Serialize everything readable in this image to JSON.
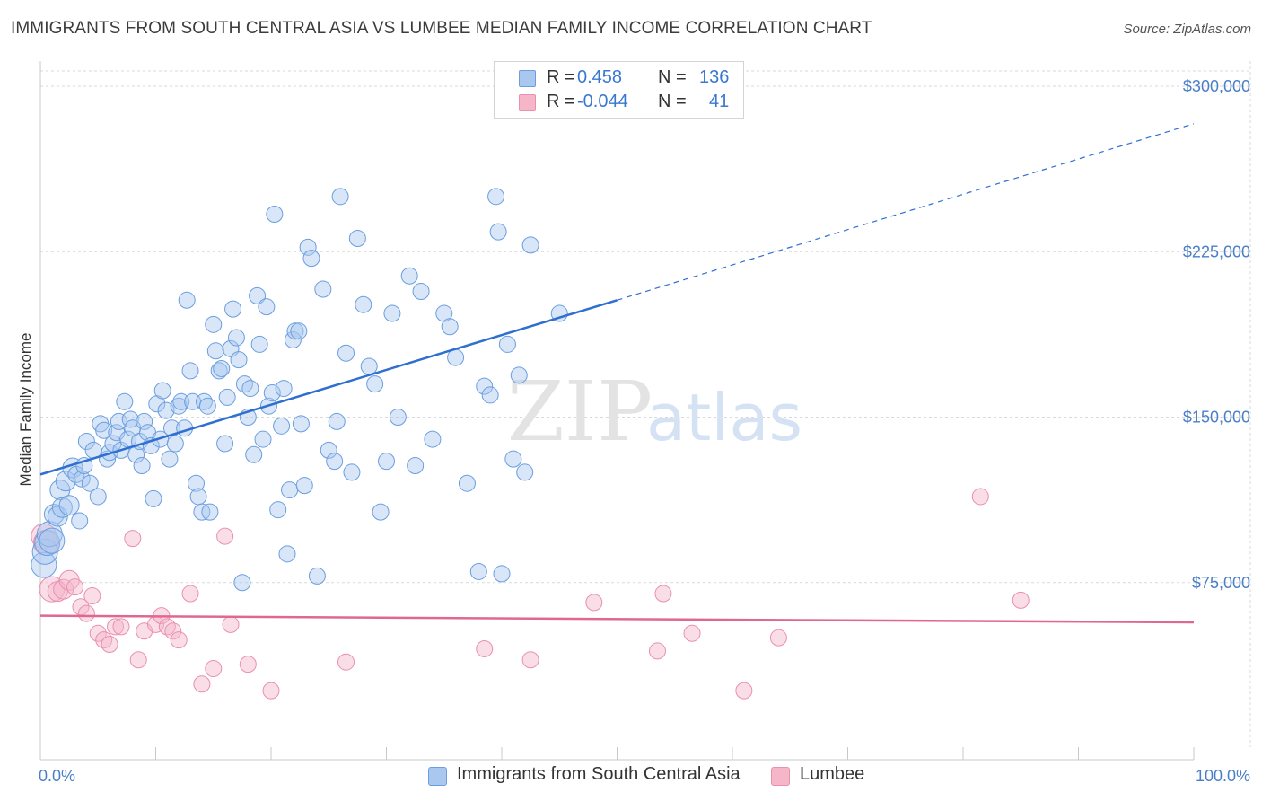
{
  "title": "IMMIGRANTS FROM SOUTH CENTRAL ASIA VS LUMBEE MEDIAN FAMILY INCOME CORRELATION CHART",
  "source": "Source: ZipAtlas.com",
  "watermark": {
    "zip": "ZIP",
    "atlas": "atlas"
  },
  "legend": {
    "rows": [
      {
        "r_label": "R =",
        "r_value": "0.458",
        "n_label": "N =",
        "n_value": "136",
        "color": "#a9c7ef"
      },
      {
        "r_label": "R =",
        "r_value": "-0.044",
        "n_label": "N =",
        "n_value": "41",
        "color": "#f5b6c9"
      }
    ]
  },
  "bottom_legend": {
    "series1": "Immigrants from South Central Asia",
    "series2": "Lumbee"
  },
  "colors": {
    "blue_fill": "#a9c7ef",
    "blue_stroke": "#6a9ee0",
    "blue_line": "#2f6fcf",
    "pink_fill": "#f5b6c9",
    "pink_stroke": "#ea8fae",
    "pink_line": "#e0688f",
    "tick_text": "#4a7fc8",
    "grid": "#d9d9d9"
  },
  "chart_data": {
    "type": "scatter",
    "title": "IMMIGRANTS FROM SOUTH CENTRAL ASIA VS LUMBEE MEDIAN FAMILY INCOME CORRELATION CHART",
    "xlabel": "",
    "ylabel": "Median Family Income",
    "xlim": [
      0,
      100
    ],
    "ylim": [
      0,
      310000
    ],
    "x_tick_labels": [
      "0.0%",
      "100.0%"
    ],
    "y_ticks": [
      75000,
      150000,
      225000,
      300000
    ],
    "y_tick_labels": [
      "$75,000",
      "$150,000",
      "$225,000",
      "$300,000"
    ],
    "grid": true,
    "legend_placement": "top-center",
    "series": [
      {
        "name": "Immigrants from South Central Asia",
        "r": 0.458,
        "n": 136,
        "trend": {
          "x0": 0,
          "y0": 124000,
          "x1": 50,
          "y1": 203000,
          "dashed_to_x": 100,
          "dashed_to_y": 283000
        },
        "points": [
          [
            0.3,
            83000
          ],
          [
            0.4,
            89000
          ],
          [
            0.6,
            93000
          ],
          [
            0.8,
            97000
          ],
          [
            1.0,
            94000
          ],
          [
            1.2,
            106000
          ],
          [
            1.5,
            105000
          ],
          [
            1.7,
            117000
          ],
          [
            1.9,
            109000
          ],
          [
            2.2,
            121000
          ],
          [
            2.5,
            110000
          ],
          [
            2.8,
            127000
          ],
          [
            3.1,
            124000
          ],
          [
            3.4,
            103000
          ],
          [
            3.6,
            122000
          ],
          [
            3.8,
            128000
          ],
          [
            4.0,
            139000
          ],
          [
            4.3,
            120000
          ],
          [
            4.6,
            135000
          ],
          [
            5.0,
            114000
          ],
          [
            5.2,
            147000
          ],
          [
            5.5,
            144000
          ],
          [
            5.8,
            131000
          ],
          [
            6.0,
            134000
          ],
          [
            6.3,
            138000
          ],
          [
            6.6,
            143000
          ],
          [
            6.8,
            148000
          ],
          [
            7.0,
            135000
          ],
          [
            7.3,
            157000
          ],
          [
            7.6,
            140000
          ],
          [
            7.8,
            149000
          ],
          [
            8.0,
            145000
          ],
          [
            8.3,
            133000
          ],
          [
            8.6,
            139000
          ],
          [
            8.8,
            128000
          ],
          [
            9.0,
            148000
          ],
          [
            9.3,
            143000
          ],
          [
            9.6,
            137000
          ],
          [
            9.8,
            113000
          ],
          [
            10.1,
            156000
          ],
          [
            10.4,
            140000
          ],
          [
            10.6,
            162000
          ],
          [
            10.9,
            153000
          ],
          [
            11.2,
            131000
          ],
          [
            11.4,
            145000
          ],
          [
            11.7,
            138000
          ],
          [
            12.0,
            155000
          ],
          [
            12.2,
            157000
          ],
          [
            12.5,
            145000
          ],
          [
            12.7,
            203000
          ],
          [
            13.0,
            171000
          ],
          [
            13.2,
            157000
          ],
          [
            13.5,
            120000
          ],
          [
            13.7,
            114000
          ],
          [
            14.0,
            107000
          ],
          [
            14.2,
            157000
          ],
          [
            14.5,
            155000
          ],
          [
            14.7,
            107000
          ],
          [
            15.0,
            192000
          ],
          [
            15.2,
            180000
          ],
          [
            15.5,
            171000
          ],
          [
            15.7,
            172000
          ],
          [
            16.0,
            138000
          ],
          [
            16.2,
            159000
          ],
          [
            16.5,
            181000
          ],
          [
            16.7,
            199000
          ],
          [
            17.0,
            186000
          ],
          [
            17.2,
            176000
          ],
          [
            17.5,
            75000
          ],
          [
            17.7,
            165000
          ],
          [
            18.0,
            150000
          ],
          [
            18.2,
            163000
          ],
          [
            18.5,
            133000
          ],
          [
            18.8,
            205000
          ],
          [
            19.0,
            183000
          ],
          [
            19.3,
            140000
          ],
          [
            19.6,
            200000
          ],
          [
            19.8,
            155000
          ],
          [
            20.1,
            161000
          ],
          [
            20.3,
            242000
          ],
          [
            20.6,
            108000
          ],
          [
            20.9,
            146000
          ],
          [
            21.1,
            163000
          ],
          [
            21.4,
            88000
          ],
          [
            21.6,
            117000
          ],
          [
            21.9,
            185000
          ],
          [
            22.1,
            189000
          ],
          [
            22.4,
            189000
          ],
          [
            22.6,
            147000
          ],
          [
            22.9,
            119000
          ],
          [
            23.2,
            227000
          ],
          [
            23.5,
            222000
          ],
          [
            24.0,
            78000
          ],
          [
            24.5,
            208000
          ],
          [
            25.0,
            135000
          ],
          [
            25.5,
            130000
          ],
          [
            25.7,
            148000
          ],
          [
            26.0,
            250000
          ],
          [
            26.5,
            179000
          ],
          [
            27.0,
            125000
          ],
          [
            27.5,
            231000
          ],
          [
            28.0,
            201000
          ],
          [
            28.5,
            173000
          ],
          [
            29.0,
            165000
          ],
          [
            29.5,
            107000
          ],
          [
            30.0,
            130000
          ],
          [
            30.5,
            197000
          ],
          [
            31.0,
            150000
          ],
          [
            32.0,
            214000
          ],
          [
            32.5,
            128000
          ],
          [
            33.0,
            207000
          ],
          [
            34.0,
            140000
          ],
          [
            35.0,
            197000
          ],
          [
            35.5,
            191000
          ],
          [
            36.0,
            177000
          ],
          [
            37.0,
            120000
          ],
          [
            38.0,
            80000
          ],
          [
            38.5,
            164000
          ],
          [
            39.0,
            160000
          ],
          [
            39.5,
            250000
          ],
          [
            39.7,
            234000
          ],
          [
            40.0,
            79000
          ],
          [
            40.5,
            183000
          ],
          [
            41.0,
            131000
          ],
          [
            41.5,
            169000
          ],
          [
            42.0,
            125000
          ],
          [
            42.5,
            228000
          ],
          [
            45.0,
            197000
          ]
        ]
      },
      {
        "name": "Lumbee",
        "r": -0.044,
        "n": 41,
        "trend": {
          "x0": 0,
          "y0": 60000,
          "x1": 100,
          "y1": 57000
        },
        "points": [
          [
            0.3,
            96000
          ],
          [
            0.5,
            93000
          ],
          [
            1.0,
            72000
          ],
          [
            1.5,
            71000
          ],
          [
            2.0,
            72000
          ],
          [
            2.5,
            76000
          ],
          [
            3.0,
            73000
          ],
          [
            3.5,
            64000
          ],
          [
            4.0,
            61000
          ],
          [
            4.5,
            69000
          ],
          [
            5.0,
            52000
          ],
          [
            5.5,
            49000
          ],
          [
            6.0,
            47000
          ],
          [
            6.5,
            55000
          ],
          [
            7.0,
            55000
          ],
          [
            8.0,
            95000
          ],
          [
            8.5,
            40000
          ],
          [
            9.0,
            53000
          ],
          [
            10.0,
            56000
          ],
          [
            10.5,
            60000
          ],
          [
            11.0,
            55000
          ],
          [
            11.5,
            53000
          ],
          [
            12.0,
            49000
          ],
          [
            13.0,
            70000
          ],
          [
            14.0,
            29000
          ],
          [
            15.0,
            36000
          ],
          [
            16.0,
            96000
          ],
          [
            16.5,
            56000
          ],
          [
            18.0,
            38000
          ],
          [
            20.0,
            26000
          ],
          [
            26.5,
            39000
          ],
          [
            38.5,
            45000
          ],
          [
            42.5,
            40000
          ],
          [
            48.0,
            66000
          ],
          [
            53.5,
            44000
          ],
          [
            54.0,
            70000
          ],
          [
            56.5,
            52000
          ],
          [
            61.0,
            26000
          ],
          [
            64.0,
            50000
          ],
          [
            81.5,
            114000
          ],
          [
            85.0,
            67000
          ]
        ]
      }
    ]
  }
}
